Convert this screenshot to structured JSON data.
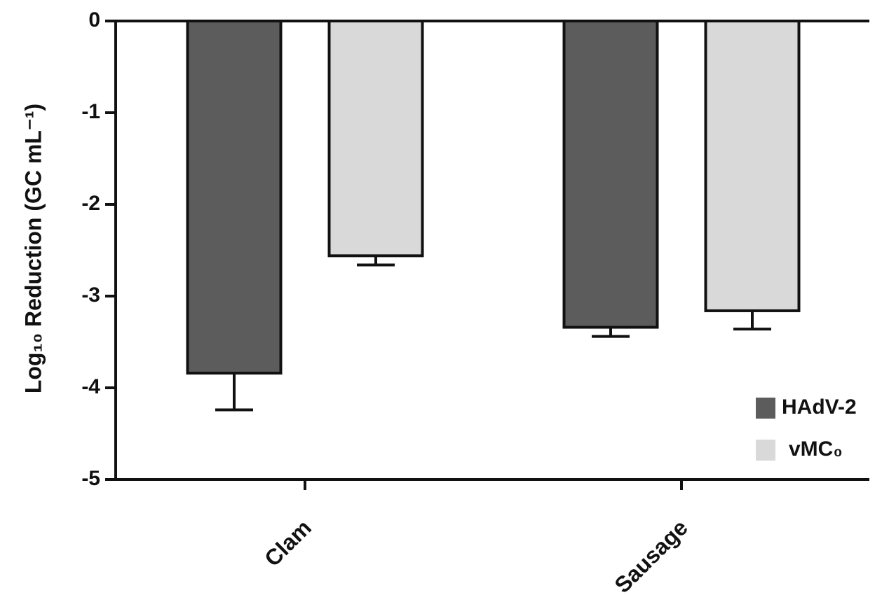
{
  "chart_data": {
    "type": "bar",
    "y_label": "Log₁₀ Reduction  (GC mL⁻¹)",
    "categories": [
      "Clam",
      "Sausage"
    ],
    "series": [
      {
        "name": "HAdV-2",
        "color": "#5c5c5c",
        "values": [
          -3.84,
          -3.34
        ],
        "errors": [
          0.4,
          0.1
        ]
      },
      {
        "name": "vMC₀",
        "color": "#d9d9d9",
        "values": [
          -2.56,
          -3.16
        ],
        "errors": [
          0.1,
          0.2
        ]
      }
    ],
    "ylim": [
      -5,
      0
    ],
    "yticks": [
      0,
      -1,
      -2,
      -3,
      -4,
      -5
    ]
  }
}
